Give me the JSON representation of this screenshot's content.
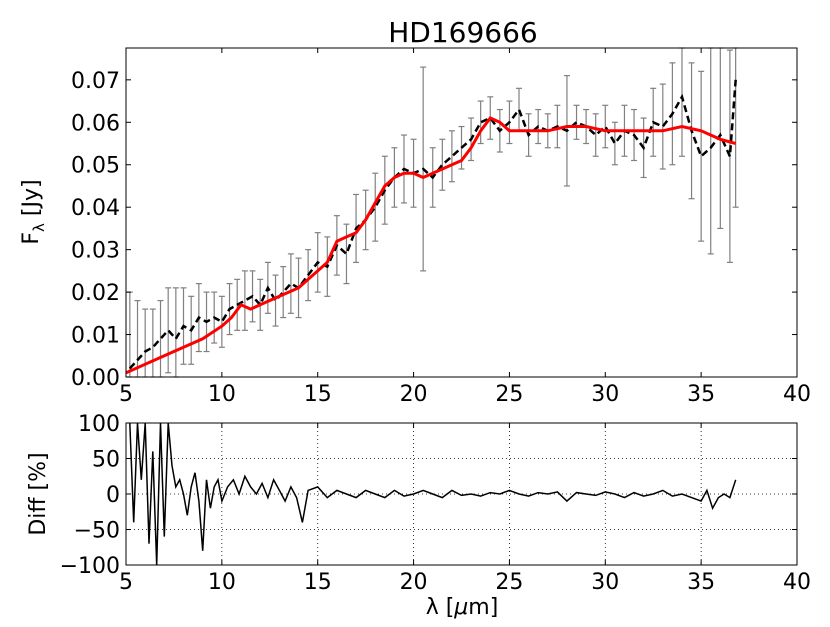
{
  "title": "HD169666",
  "colors": {
    "data_line": "#000000",
    "error_bar": "#808080",
    "model_line": "#ff0000",
    "diff_line": "#000000"
  },
  "chart_data": [
    {
      "type": "line",
      "panel": "spectrum",
      "title": "HD169666",
      "xlabel": "",
      "ylabel": "F",
      "ylabel_sub": "λ",
      "ylabel_unit": " [Jy]",
      "xlim": [
        5,
        40
      ],
      "ylim": [
        0.0,
        0.0775
      ],
      "xticks": [
        5,
        10,
        15,
        20,
        25,
        30,
        35,
        40
      ],
      "yticks": [
        0.0,
        0.01,
        0.02,
        0.03,
        0.04,
        0.05,
        0.06,
        0.07
      ],
      "ytick_labels": [
        "0.00",
        "0.01",
        "0.02",
        "0.03",
        "0.04",
        "0.05",
        "0.06",
        "0.07"
      ],
      "grid": false,
      "series": [
        {
          "style": "observed-dashed-with-errorbars",
          "x": [
            5.2,
            5.6,
            6.0,
            6.4,
            6.8,
            7.2,
            7.6,
            8.0,
            8.4,
            8.8,
            9.2,
            9.6,
            10.0,
            10.4,
            10.8,
            11.2,
            11.6,
            12.0,
            12.4,
            12.8,
            13.2,
            13.6,
            14.0,
            14.5,
            15.0,
            15.5,
            16.0,
            16.5,
            17.0,
            17.5,
            18.0,
            18.5,
            19.0,
            19.5,
            20.0,
            20.5,
            21.0,
            21.5,
            22.0,
            22.5,
            23.0,
            23.5,
            24.0,
            24.5,
            25.0,
            25.5,
            26.0,
            26.5,
            27.0,
            27.5,
            28.0,
            28.5,
            29.0,
            29.5,
            30.0,
            30.5,
            31.0,
            31.5,
            32.0,
            32.5,
            33.0,
            33.5,
            34.0,
            34.5,
            35.0,
            35.5,
            36.0,
            36.5,
            36.8
          ],
          "y": [
            0.002,
            0.004,
            0.006,
            0.007,
            0.009,
            0.011,
            0.009,
            0.012,
            0.011,
            0.014,
            0.013,
            0.014,
            0.013,
            0.016,
            0.017,
            0.018,
            0.019,
            0.017,
            0.021,
            0.018,
            0.02,
            0.022,
            0.021,
            0.024,
            0.027,
            0.026,
            0.031,
            0.029,
            0.035,
            0.037,
            0.04,
            0.044,
            0.047,
            0.049,
            0.048,
            0.049,
            0.047,
            0.05,
            0.052,
            0.054,
            0.056,
            0.06,
            0.061,
            0.058,
            0.06,
            0.063,
            0.057,
            0.059,
            0.058,
            0.059,
            0.058,
            0.06,
            0.059,
            0.057,
            0.059,
            0.055,
            0.058,
            0.057,
            0.054,
            0.06,
            0.059,
            0.062,
            0.066,
            0.058,
            0.052,
            0.054,
            0.057,
            0.052,
            0.07
          ],
          "err": [
            0.018,
            0.014,
            0.01,
            0.009,
            0.009,
            0.01,
            0.012,
            0.009,
            0.008,
            0.008,
            0.007,
            0.006,
            0.006,
            0.006,
            0.006,
            0.007,
            0.006,
            0.006,
            0.006,
            0.006,
            0.006,
            0.007,
            0.007,
            0.006,
            0.007,
            0.007,
            0.007,
            0.007,
            0.008,
            0.007,
            0.008,
            0.008,
            0.007,
            0.008,
            0.008,
            0.024,
            0.007,
            0.006,
            0.006,
            0.005,
            0.005,
            0.005,
            0.005,
            0.005,
            0.005,
            0.005,
            0.005,
            0.004,
            0.004,
            0.005,
            0.013,
            0.004,
            0.004,
            0.005,
            0.005,
            0.005,
            0.006,
            0.006,
            0.007,
            0.008,
            0.01,
            0.012,
            0.014,
            0.016,
            0.02,
            0.025,
            0.022,
            0.025,
            0.03
          ]
        },
        {
          "style": "model-red",
          "x": [
            5.0,
            6.0,
            7.0,
            8.0,
            9.0,
            10.0,
            10.5,
            11.0,
            11.5,
            12.0,
            13.0,
            14.0,
            15.0,
            15.5,
            16.0,
            16.5,
            17.0,
            17.5,
            18.0,
            18.5,
            19.0,
            19.5,
            20.0,
            20.5,
            21.0,
            21.5,
            22.0,
            22.5,
            23.0,
            23.5,
            24.0,
            24.5,
            25.0,
            25.5,
            26.0,
            26.5,
            27.0,
            28.0,
            29.0,
            30.0,
            31.0,
            32.0,
            33.0,
            34.0,
            35.0,
            36.0,
            36.8
          ],
          "y": [
            0.001,
            0.003,
            0.005,
            0.007,
            0.009,
            0.012,
            0.014,
            0.017,
            0.016,
            0.017,
            0.019,
            0.021,
            0.025,
            0.027,
            0.032,
            0.033,
            0.034,
            0.037,
            0.041,
            0.045,
            0.047,
            0.048,
            0.048,
            0.047,
            0.048,
            0.049,
            0.05,
            0.051,
            0.054,
            0.058,
            0.061,
            0.06,
            0.058,
            0.058,
            0.058,
            0.058,
            0.058,
            0.059,
            0.059,
            0.058,
            0.058,
            0.058,
            0.058,
            0.059,
            0.058,
            0.056,
            0.055
          ]
        }
      ]
    },
    {
      "type": "line",
      "panel": "residual",
      "xlabel_parts": [
        "λ [",
        "μ",
        "m]"
      ],
      "ylabel": "Diff [%]",
      "xlim": [
        5,
        40
      ],
      "ylim": [
        -100,
        100
      ],
      "xticks": [
        5,
        10,
        15,
        20,
        25,
        30,
        35,
        40
      ],
      "yticks": [
        -100,
        -50,
        0,
        50,
        100
      ],
      "ytick_labels": [
        "−100",
        "−50",
        "0",
        "50",
        "100"
      ],
      "grid": true,
      "series": [
        {
          "style": "residual",
          "x": [
            5.2,
            5.4,
            5.6,
            5.8,
            6.0,
            6.2,
            6.4,
            6.6,
            6.8,
            7.0,
            7.2,
            7.4,
            7.6,
            7.8,
            8.0,
            8.2,
            8.4,
            8.6,
            8.8,
            9.0,
            9.2,
            9.4,
            9.6,
            9.8,
            10.0,
            10.3,
            10.6,
            10.9,
            11.2,
            11.5,
            11.8,
            12.1,
            12.4,
            12.7,
            13.0,
            13.3,
            13.6,
            13.9,
            14.2,
            14.5,
            15.0,
            15.5,
            16.0,
            16.5,
            17.0,
            17.5,
            18.0,
            18.5,
            19.0,
            19.5,
            20.0,
            20.5,
            21.0,
            21.5,
            22.0,
            22.5,
            23.0,
            23.5,
            24.0,
            24.5,
            25.0,
            25.5,
            26.0,
            26.5,
            27.0,
            27.5,
            28.0,
            28.5,
            29.0,
            29.5,
            30.0,
            30.5,
            31.0,
            31.5,
            32.0,
            32.5,
            33.0,
            33.5,
            34.0,
            34.5,
            35.0,
            35.3,
            35.6,
            35.9,
            36.2,
            36.5,
            36.8
          ],
          "y": [
            100,
            -40,
            100,
            20,
            100,
            -70,
            60,
            -100,
            100,
            -60,
            100,
            40,
            10,
            20,
            0,
            -30,
            10,
            30,
            -10,
            -80,
            20,
            -20,
            10,
            20,
            -10,
            10,
            20,
            0,
            25,
            10,
            0,
            15,
            -5,
            20,
            5,
            -10,
            10,
            -5,
            -40,
            5,
            10,
            -5,
            5,
            0,
            -5,
            5,
            0,
            -5,
            5,
            -3,
            0,
            5,
            0,
            -5,
            5,
            -2,
            0,
            -3,
            2,
            0,
            5,
            0,
            -3,
            2,
            0,
            3,
            -10,
            2,
            0,
            -2,
            3,
            0,
            -5,
            2,
            -3,
            0,
            5,
            -3,
            0,
            -5,
            -10,
            5,
            -20,
            -5,
            0,
            -5,
            20
          ]
        }
      ]
    }
  ]
}
